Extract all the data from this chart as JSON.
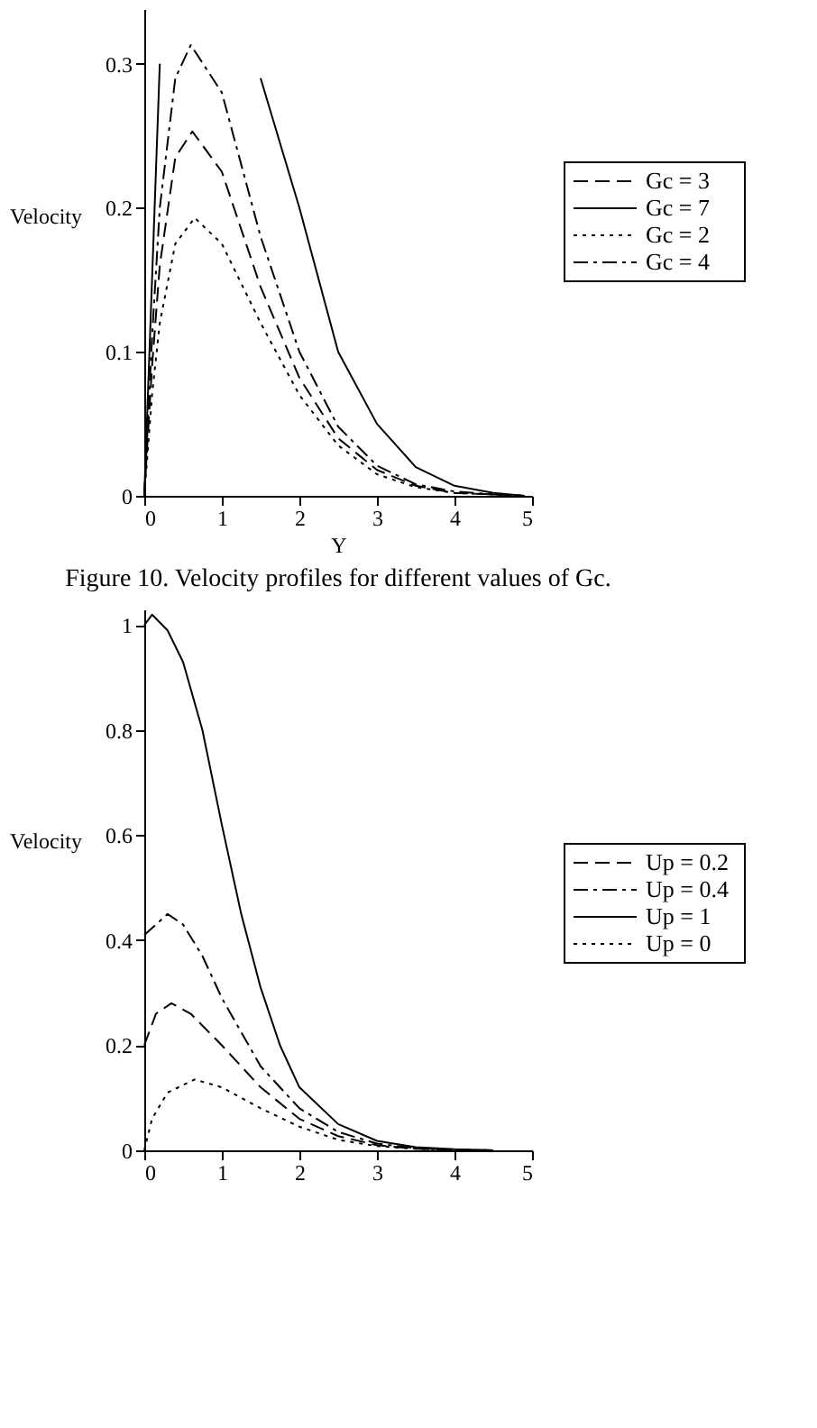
{
  "chart_data": [
    {
      "type": "line",
      "xlabel": "Y",
      "ylabel": "Velocity",
      "xlim": [
        0,
        5
      ],
      "xticks": [
        0,
        1,
        2,
        3,
        4,
        5
      ],
      "ylim": [
        0,
        0.338
      ],
      "yticks": [
        0,
        0.1,
        0.2,
        0.3
      ],
      "grid": false,
      "legend": "right",
      "marker": "none",
      "annotations": [
        "Figure 10. Velocity profiles for different values of Gc."
      ],
      "series": [
        {
          "name": "Gc = 3",
          "color": "#000000",
          "line_style": "dashed",
          "x": [
            0,
            0.1,
            0.2,
            0.4,
            0.62,
            1,
            1.5,
            2,
            2.5,
            3,
            3.5,
            4,
            4.5,
            4.9
          ],
          "values": [
            0,
            0.09,
            0.16,
            0.235,
            0.253,
            0.225,
            0.145,
            0.082,
            0.04,
            0.018,
            0.007,
            0.002,
            0.001,
            0
          ]
        },
        {
          "name": "Gc = 7",
          "color": "#000000",
          "line_style": "solid",
          "x": [
            0,
            0.1,
            0.2,
            0.24,
            0.6,
            1.3,
            1.5,
            2,
            2.5,
            3,
            3.5,
            4,
            4.5,
            4.9
          ],
          "values": [
            0,
            0.15,
            0.3,
            null,
            null,
            null,
            0.29,
            0.2,
            0.1,
            0.05,
            0.02,
            0.007,
            0.002,
            0
          ]
        },
        {
          "name": "Gc = 2",
          "color": "#000000",
          "line_style": "dotted",
          "x": [
            0,
            0.1,
            0.2,
            0.4,
            0.65,
            1,
            1.5,
            2,
            2.5,
            3,
            3.5,
            4,
            4.5,
            4.9
          ],
          "values": [
            0,
            0.07,
            0.12,
            0.175,
            0.193,
            0.175,
            0.12,
            0.07,
            0.035,
            0.015,
            0.006,
            0.002,
            0.001,
            0
          ]
        },
        {
          "name": "Gc = 4",
          "color": "#000000",
          "line_style": "dashdot",
          "x": [
            0,
            0.1,
            0.2,
            0.4,
            0.6,
            1,
            1.5,
            2,
            2.5,
            3,
            3.5,
            4,
            4.5,
            4.9
          ],
          "values": [
            0,
            0.11,
            0.2,
            0.29,
            0.313,
            0.28,
            0.18,
            0.1,
            0.048,
            0.021,
            0.008,
            0.003,
            0.001,
            0
          ]
        }
      ]
    },
    {
      "type": "line",
      "ylabel": "Velocity",
      "xlim": [
        0,
        5
      ],
      "xticks": [
        0,
        1,
        2,
        3,
        4,
        5
      ],
      "ylim": [
        0,
        1.03
      ],
      "yticks": [
        0,
        0.2,
        0.4,
        0.6,
        0.8,
        1
      ],
      "grid": false,
      "legend": "right",
      "marker": "none",
      "series": [
        {
          "name": "Up = 0.2",
          "color": "#000000",
          "line_style": "dashed",
          "x": [
            0,
            0.15,
            0.35,
            0.6,
            1,
            1.5,
            2,
            2.5,
            3,
            3.5,
            4,
            4.5
          ],
          "values": [
            0.2,
            0.26,
            0.28,
            0.26,
            0.2,
            0.12,
            0.06,
            0.027,
            0.01,
            0.003,
            0.001,
            0
          ]
        },
        {
          "name": "Up = 0.4",
          "color": "#000000",
          "line_style": "dashdot",
          "x": [
            0,
            0.3,
            0.5,
            0.75,
            1,
            1.5,
            2,
            2.5,
            3,
            3.5,
            4,
            4.5
          ],
          "values": [
            0.41,
            0.45,
            0.43,
            0.37,
            0.29,
            0.16,
            0.08,
            0.035,
            0.013,
            0.004,
            0.001,
            0
          ]
        },
        {
          "name": "Up = 1",
          "color": "#000000",
          "line_style": "solid",
          "x": [
            0,
            0.1,
            0.3,
            0.5,
            0.75,
            1,
            1.25,
            1.5,
            1.75,
            2,
            2.5,
            3,
            3.5,
            4,
            4.5
          ],
          "values": [
            1.0,
            1.02,
            0.99,
            0.93,
            0.8,
            0.62,
            0.45,
            0.31,
            0.2,
            0.12,
            0.05,
            0.018,
            0.006,
            0.002,
            0
          ]
        },
        {
          "name": "Up = 0",
          "color": "#000000",
          "line_style": "dotted",
          "x": [
            0,
            0.1,
            0.3,
            0.65,
            1,
            1.5,
            2,
            2.5,
            3,
            3.5,
            4,
            4.5
          ],
          "values": [
            0,
            0.06,
            0.11,
            0.135,
            0.12,
            0.08,
            0.045,
            0.02,
            0.008,
            0.003,
            0.001,
            0
          ]
        }
      ]
    }
  ]
}
